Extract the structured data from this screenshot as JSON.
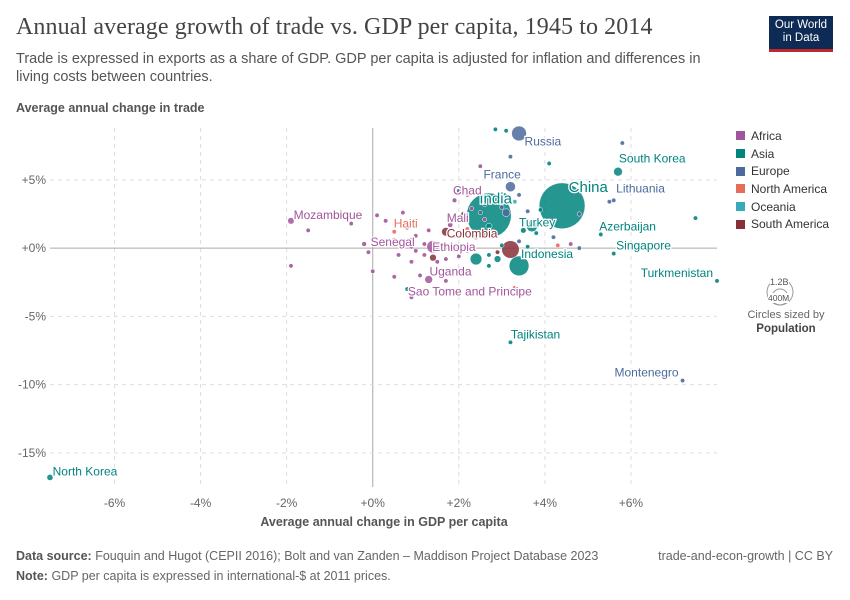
{
  "header": {
    "title": "Annual average growth of trade vs. GDP per capita, 1945 to 2014",
    "subtitle": "Trade is expressed in exports as a share of GDP. GDP per capita is adjusted for inflation and differences in living costs between countries."
  },
  "logo": {
    "line1": "Our World",
    "line2": "in Data"
  },
  "size_legend": {
    "large": "1.2B",
    "small": "400M",
    "caption": "Circles sized by",
    "variable": "Population"
  },
  "footer": {
    "source_label": "Data source:",
    "source_text": "Fouquin and Hugot (CEPII 2016); Bolt and van Zanden – Maddison Project Database 2023",
    "note_label": "Note:",
    "note_text": "GDP per capita is expressed in international-$ at 2011 prices.",
    "license": "trade-and-econ-growth | CC BY"
  },
  "colors": {
    "Africa": "#a2559c",
    "Asia": "#00847e",
    "Europe": "#4c6a9c",
    "North America": "#e56e5a",
    "Oceania": "#38aaba",
    "South America": "#883039",
    "grid": "#dddddd",
    "axis": "#aaaaaa"
  },
  "chart_data": {
    "type": "scatter",
    "xlabel": "Average annual change in GDP per capita",
    "ylabel": "Average annual change in trade",
    "xlim": [
      -7.5,
      8.0
    ],
    "ylim": [
      -17.5,
      8.8
    ],
    "x_ticks": [
      -6,
      -4,
      -2,
      0,
      2,
      4,
      6
    ],
    "x_tick_labels": [
      "-6%",
      "-4%",
      "-2%",
      "+0%",
      "+2%",
      "+4%",
      "+6%"
    ],
    "y_ticks": [
      5,
      0,
      -5,
      -10,
      -15
    ],
    "y_tick_labels": [
      "+5%",
      "+0%",
      "-5%",
      "-10%",
      "-15%"
    ],
    "legend": [
      "Africa",
      "Asia",
      "Europe",
      "North America",
      "Oceania",
      "South America"
    ],
    "labeled_points": [
      {
        "name": "Russia",
        "x": 3.4,
        "y": 8.4,
        "region": "Europe",
        "pop": 145
      },
      {
        "name": "South Korea",
        "x": 5.7,
        "y": 5.6,
        "region": "Asia",
        "pop": 50
      },
      {
        "name": "China",
        "x": 4.4,
        "y": 3.1,
        "region": "Asia",
        "pop": 1370
      },
      {
        "name": "France",
        "x": 3.2,
        "y": 4.5,
        "region": "Europe",
        "pop": 66
      },
      {
        "name": "Lithuania",
        "x": 5.6,
        "y": 3.5,
        "region": "Europe",
        "pop": 3
      },
      {
        "name": "India",
        "x": 2.7,
        "y": 2.4,
        "region": "Asia",
        "pop": 1300
      },
      {
        "name": "Chad",
        "x": 1.9,
        "y": 3.5,
        "region": "Africa",
        "pop": 14
      },
      {
        "name": "Mozambique",
        "x": -1.9,
        "y": 2.0,
        "region": "Africa",
        "pop": 28
      },
      {
        "name": "Mali",
        "x": 1.8,
        "y": 1.7,
        "region": "Africa",
        "pop": 17
      },
      {
        "name": "Turkey",
        "x": 3.7,
        "y": 1.6,
        "region": "Asia",
        "pop": 78
      },
      {
        "name": "Azerbaijan",
        "x": 5.3,
        "y": 1.0,
        "region": "Asia",
        "pop": 10
      },
      {
        "name": "Haiti",
        "x": 0.5,
        "y": 1.2,
        "region": "North America",
        "pop": 11
      },
      {
        "name": "Colombia",
        "x": 1.7,
        "y": 1.2,
        "region": "South America",
        "pop": 48
      },
      {
        "name": "Senegal",
        "x": -0.2,
        "y": 0.3,
        "region": "Africa",
        "pop": 15
      },
      {
        "name": "Ethiopia",
        "x": 1.4,
        "y": 0.1,
        "region": "Africa",
        "pop": 100
      },
      {
        "name": "Indonesia",
        "x": 3.4,
        "y": -1.3,
        "region": "Asia",
        "pop": 255
      },
      {
        "name": "Singapore",
        "x": 5.6,
        "y": -0.4,
        "region": "Asia",
        "pop": 6
      },
      {
        "name": "Uganda",
        "x": 1.3,
        "y": -2.3,
        "region": "Africa",
        "pop": 40
      },
      {
        "name": "Turkmenistan",
        "x": 8.0,
        "y": -2.4,
        "region": "Asia",
        "pop": 5
      },
      {
        "name": "Sao Tome and Principe",
        "x": 0.9,
        "y": -3.6,
        "region": "Africa",
        "pop": 0.2
      },
      {
        "name": "Tajikistan",
        "x": 3.2,
        "y": -6.9,
        "region": "Asia",
        "pop": 8
      },
      {
        "name": "Montenegro",
        "x": 7.2,
        "y": -9.7,
        "region": "Europe",
        "pop": 0.6
      },
      {
        "name": "North Korea",
        "x": -7.5,
        "y": -16.8,
        "region": "Asia",
        "pop": 25
      }
    ],
    "other_points": [
      {
        "x": 2.85,
        "y": 8.7,
        "region": "Asia",
        "pop": 3
      },
      {
        "x": 3.1,
        "y": 8.6,
        "region": "Asia",
        "pop": 3
      },
      {
        "x": 5.8,
        "y": 7.7,
        "region": "Europe",
        "pop": 3
      },
      {
        "x": 4.1,
        "y": 6.2,
        "region": "Asia",
        "pop": 3
      },
      {
        "x": 2.5,
        "y": 6.0,
        "region": "Africa",
        "pop": 3
      },
      {
        "x": 3.2,
        "y": 6.7,
        "region": "Europe",
        "pop": 3
      },
      {
        "x": 7.5,
        "y": 2.2,
        "region": "Asia",
        "pop": 3
      },
      {
        "x": 5.5,
        "y": 3.4,
        "region": "Europe",
        "pop": 3
      },
      {
        "x": 3.05,
        "y": 3.8,
        "region": "Asia",
        "pop": 30
      },
      {
        "x": 3.4,
        "y": 3.9,
        "region": "Europe",
        "pop": 10
      },
      {
        "x": 3.3,
        "y": 3.4,
        "region": "Oceania",
        "pop": 8
      },
      {
        "x": 3.0,
        "y": 3.0,
        "region": "Europe",
        "pop": 10
      },
      {
        "x": 2.6,
        "y": 3.2,
        "region": "Europe",
        "pop": 8
      },
      {
        "x": 2.2,
        "y": 3.9,
        "region": "Africa",
        "pop": 3
      },
      {
        "x": 2.0,
        "y": 4.2,
        "region": "Europe",
        "pop": 3
      },
      {
        "x": 2.3,
        "y": 2.9,
        "region": "Africa",
        "pop": 5
      },
      {
        "x": 2.5,
        "y": 2.6,
        "region": "Europe",
        "pop": 10
      },
      {
        "x": 2.1,
        "y": 2.5,
        "region": "South America",
        "pop": 5
      },
      {
        "x": 2.0,
        "y": 2.3,
        "region": "North America",
        "pop": 10
      },
      {
        "x": 3.1,
        "y": 2.6,
        "region": "Europe",
        "pop": 40
      },
      {
        "x": 3.6,
        "y": 2.7,
        "region": "Europe",
        "pop": 5
      },
      {
        "x": 3.9,
        "y": 2.8,
        "region": "Asia",
        "pop": 5
      },
      {
        "x": 3.5,
        "y": 1.3,
        "region": "Asia",
        "pop": 20
      },
      {
        "x": 3.8,
        "y": 1.1,
        "region": "Asia",
        "pop": 10
      },
      {
        "x": 4.8,
        "y": 2.5,
        "region": "Europe",
        "pop": 3
      },
      {
        "x": 4.0,
        "y": 2.0,
        "region": "Europe",
        "pop": 3
      },
      {
        "x": 2.7,
        "y": 1.6,
        "region": "Asia",
        "pop": 25
      },
      {
        "x": 2.8,
        "y": 1.2,
        "region": "South America",
        "pop": 12
      },
      {
        "x": 2.4,
        "y": 0.8,
        "region": "South America",
        "pop": 15
      },
      {
        "x": 1.9,
        "y": 0.9,
        "region": "Africa",
        "pop": 8
      },
      {
        "x": 1.3,
        "y": 1.3,
        "region": "Africa",
        "pop": 6
      },
      {
        "x": 1.0,
        "y": 0.9,
        "region": "Africa",
        "pop": 5
      },
      {
        "x": 0.9,
        "y": 0.6,
        "region": "Africa",
        "pop": 5
      },
      {
        "x": 1.2,
        "y": 0.3,
        "region": "Africa",
        "pop": 8
      },
      {
        "x": 1.5,
        "y": 0.2,
        "region": "Africa",
        "pop": 10
      },
      {
        "x": 1.0,
        "y": -0.2,
        "region": "Africa",
        "pop": 6
      },
      {
        "x": 1.2,
        "y": -0.5,
        "region": "Africa",
        "pop": 10
      },
      {
        "x": 1.4,
        "y": -0.7,
        "region": "South America",
        "pop": 30
      },
      {
        "x": 1.7,
        "y": -0.8,
        "region": "Africa",
        "pop": 5
      },
      {
        "x": 2.0,
        "y": -0.6,
        "region": "Africa",
        "pop": 5
      },
      {
        "x": 2.2,
        "y": -0.2,
        "region": "Africa",
        "pop": 5
      },
      {
        "x": 2.4,
        "y": -0.8,
        "region": "Asia",
        "pop": 90
      },
      {
        "x": 2.7,
        "y": -0.5,
        "region": "Asia",
        "pop": 10
      },
      {
        "x": 2.9,
        "y": -0.3,
        "region": "South America",
        "pop": 6
      },
      {
        "x": 3.2,
        "y": -0.1,
        "region": "South America",
        "pop": 200
      },
      {
        "x": 3.0,
        "y": 0.2,
        "region": "Asia",
        "pop": 10
      },
      {
        "x": 2.9,
        "y": -0.8,
        "region": "Asia",
        "pop": 30
      },
      {
        "x": 2.7,
        "y": -1.3,
        "region": "Asia",
        "pop": 3
      },
      {
        "x": 3.4,
        "y": 0.5,
        "region": "Europe",
        "pop": 5
      },
      {
        "x": 4.2,
        "y": 0.8,
        "region": "Europe",
        "pop": 3
      },
      {
        "x": 4.5,
        "y": -0.6,
        "region": "Asia",
        "pop": 3
      },
      {
        "x": 4.8,
        "y": 0.0,
        "region": "Europe",
        "pop": 3
      },
      {
        "x": 4.6,
        "y": 0.3,
        "region": "Africa",
        "pop": 3
      },
      {
        "x": 4.3,
        "y": 0.2,
        "region": "North America",
        "pop": 3
      },
      {
        "x": 0.1,
        "y": 2.4,
        "region": "Africa",
        "pop": 3
      },
      {
        "x": 0.3,
        "y": 2.0,
        "region": "Africa",
        "pop": 3
      },
      {
        "x": -0.5,
        "y": 1.8,
        "region": "Africa",
        "pop": 3
      },
      {
        "x": -1.5,
        "y": 1.3,
        "region": "Africa",
        "pop": 3
      },
      {
        "x": 0.7,
        "y": 2.6,
        "region": "Africa",
        "pop": 3
      },
      {
        "x": 0.8,
        "y": 1.5,
        "region": "Africa",
        "pop": 5
      },
      {
        "x": 0.5,
        "y": 0.6,
        "region": "Africa",
        "pop": 4
      },
      {
        "x": 0.9,
        "y": 0.1,
        "region": "Africa",
        "pop": 4
      },
      {
        "x": -0.1,
        "y": -0.3,
        "region": "Africa",
        "pop": 3
      },
      {
        "x": 0.6,
        "y": -0.5,
        "region": "Africa",
        "pop": 3
      },
      {
        "x": 0.9,
        "y": -1.0,
        "region": "Africa",
        "pop": 3
      },
      {
        "x": 0.0,
        "y": -1.7,
        "region": "Africa",
        "pop": 3
      },
      {
        "x": 0.5,
        "y": -2.1,
        "region": "Africa",
        "pop": 3
      },
      {
        "x": 1.1,
        "y": -2.0,
        "region": "Africa",
        "pop": 3
      },
      {
        "x": 1.5,
        "y": -1.8,
        "region": "Africa",
        "pop": 3
      },
      {
        "x": 1.7,
        "y": -2.4,
        "region": "Africa",
        "pop": 3
      },
      {
        "x": 2.1,
        "y": -1.7,
        "region": "Africa",
        "pop": 4
      },
      {
        "x": -1.9,
        "y": -1.3,
        "region": "Africa",
        "pop": 3
      },
      {
        "x": 0.8,
        "y": -3.0,
        "region": "Asia",
        "pop": 3
      },
      {
        "x": 1.5,
        "y": -1.0,
        "region": "Africa",
        "pop": 3
      },
      {
        "x": 3.3,
        "y": -2.9,
        "region": "North America",
        "pop": 3
      },
      {
        "x": 3.6,
        "y": 0.1,
        "region": "Asia",
        "pop": 3
      },
      {
        "x": 2.6,
        "y": 2.1,
        "region": "Africa",
        "pop": 4
      },
      {
        "x": 2.2,
        "y": 1.4,
        "region": "North America",
        "pop": 3
      }
    ]
  }
}
